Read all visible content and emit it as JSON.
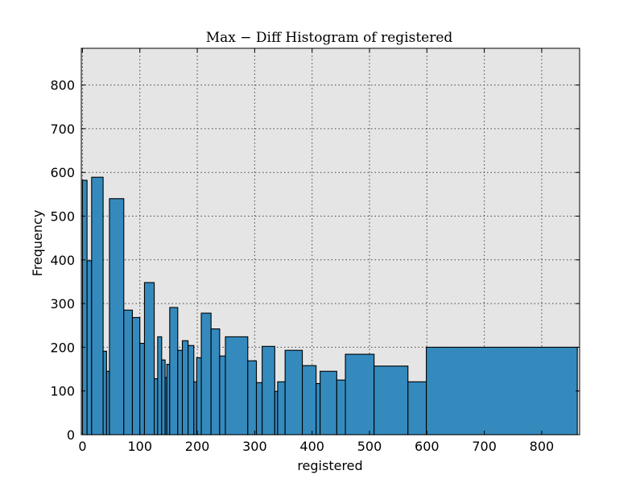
{
  "chart_data": {
    "type": "bar",
    "title": "Max − Diff Histogram of registered",
    "xlabel": "registered",
    "ylabel": "Frequency",
    "xlim": [
      -2,
      866
    ],
    "ylim": [
      0,
      884
    ],
    "xticks": [
      0,
      100,
      200,
      300,
      400,
      500,
      600,
      700,
      800
    ],
    "yticks": [
      0,
      100,
      200,
      300,
      400,
      500,
      600,
      700,
      800
    ],
    "grid": true,
    "bins": [
      {
        "x0": 0,
        "x1": 8,
        "value": 582
      },
      {
        "x0": 8,
        "x1": 16,
        "value": 398
      },
      {
        "x0": 16,
        "x1": 36,
        "value": 589
      },
      {
        "x0": 36,
        "x1": 42,
        "value": 191
      },
      {
        "x0": 42,
        "x1": 47,
        "value": 145
      },
      {
        "x0": 47,
        "x1": 72,
        "value": 540
      },
      {
        "x0": 72,
        "x1": 87,
        "value": 285
      },
      {
        "x0": 87,
        "x1": 100,
        "value": 268
      },
      {
        "x0": 100,
        "x1": 108,
        "value": 209
      },
      {
        "x0": 108,
        "x1": 125,
        "value": 348
      },
      {
        "x0": 125,
        "x1": 131,
        "value": 128
      },
      {
        "x0": 131,
        "x1": 138,
        "value": 224
      },
      {
        "x0": 138,
        "x1": 144,
        "value": 171
      },
      {
        "x0": 144,
        "x1": 147,
        "value": 131
      },
      {
        "x0": 147,
        "x1": 152,
        "value": 161
      },
      {
        "x0": 152,
        "x1": 166,
        "value": 291
      },
      {
        "x0": 166,
        "x1": 174,
        "value": 193
      },
      {
        "x0": 174,
        "x1": 184,
        "value": 215
      },
      {
        "x0": 184,
        "x1": 194,
        "value": 204
      },
      {
        "x0": 194,
        "x1": 199,
        "value": 121
      },
      {
        "x0": 199,
        "x1": 207,
        "value": 176
      },
      {
        "x0": 207,
        "x1": 224,
        "value": 278
      },
      {
        "x0": 224,
        "x1": 239,
        "value": 242
      },
      {
        "x0": 239,
        "x1": 249,
        "value": 180
      },
      {
        "x0": 249,
        "x1": 288,
        "value": 224
      },
      {
        "x0": 288,
        "x1": 303,
        "value": 169
      },
      {
        "x0": 303,
        "x1": 313,
        "value": 119
      },
      {
        "x0": 313,
        "x1": 335,
        "value": 202
      },
      {
        "x0": 335,
        "x1": 340,
        "value": 99
      },
      {
        "x0": 340,
        "x1": 353,
        "value": 121
      },
      {
        "x0": 353,
        "x1": 383,
        "value": 193
      },
      {
        "x0": 383,
        "x1": 407,
        "value": 158
      },
      {
        "x0": 407,
        "x1": 414,
        "value": 117
      },
      {
        "x0": 414,
        "x1": 443,
        "value": 145
      },
      {
        "x0": 443,
        "x1": 458,
        "value": 125
      },
      {
        "x0": 458,
        "x1": 508,
        "value": 184
      },
      {
        "x0": 508,
        "x1": 567,
        "value": 157
      },
      {
        "x0": 567,
        "x1": 599,
        "value": 121
      },
      {
        "x0": 599,
        "x1": 862,
        "value": 200
      }
    ],
    "colors": {
      "bar_fill": "#348abd",
      "bar_edge": "#000000",
      "plot_bg": "#e5e5e5",
      "grid": "#444444"
    }
  }
}
